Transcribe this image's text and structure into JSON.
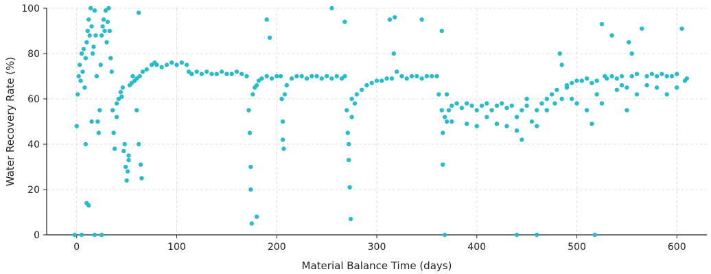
{
  "chart_data": {
    "type": "scatter",
    "xlabel": "Material Balance Time (days)",
    "ylabel": "Water Recovery Rate (%)",
    "xlim": [
      -30,
      630
    ],
    "ylim": [
      0,
      100
    ],
    "xticks": [
      0,
      100,
      200,
      300,
      400,
      500,
      600
    ],
    "yticks": [
      0,
      20,
      40,
      60,
      80,
      100
    ],
    "grid": true,
    "marker_color": "#26bcc9",
    "series": [
      {
        "points": [
          [
            0,
            48
          ],
          [
            1,
            62
          ],
          [
            2,
            70
          ],
          [
            3,
            75
          ],
          [
            4,
            68
          ],
          [
            5,
            80
          ],
          [
            6,
            72
          ],
          [
            7,
            82
          ],
          [
            8,
            65
          ],
          [
            9,
            78
          ],
          [
            10,
            85
          ],
          [
            11,
            90
          ],
          [
            12,
            95
          ],
          [
            13,
            88
          ],
          [
            14,
            100
          ],
          [
            15,
            92
          ],
          [
            16,
            80
          ],
          [
            17,
            83
          ],
          [
            18,
            99
          ],
          [
            19,
            88
          ],
          [
            20,
            70
          ],
          [
            21,
            50
          ],
          [
            22,
            45
          ],
          [
            23,
            55
          ],
          [
            24,
            75
          ],
          [
            25,
            88
          ],
          [
            26,
            92
          ],
          [
            27,
            95
          ],
          [
            28,
            90
          ],
          [
            29,
            99
          ],
          [
            30,
            85
          ],
          [
            31,
            94
          ],
          [
            32,
            100
          ],
          [
            33,
            90
          ],
          [
            34,
            78
          ],
          [
            35,
            72
          ],
          [
            36,
            55
          ],
          [
            37,
            45
          ],
          [
            38,
            38
          ],
          [
            40,
            52
          ],
          [
            42,
            60
          ],
          [
            44,
            63
          ],
          [
            46,
            65
          ],
          [
            48,
            40
          ],
          [
            49,
            30
          ],
          [
            50,
            24
          ],
          [
            51,
            28
          ],
          [
            52,
            35
          ],
          [
            53,
            66
          ],
          [
            55,
            67
          ],
          [
            58,
            68
          ],
          [
            60,
            69
          ],
          [
            62,
            98
          ],
          [
            63,
            70
          ],
          [
            64,
            31
          ],
          [
            65,
            25
          ],
          [
            66,
            72
          ],
          [
            70,
            73
          ],
          [
            75,
            75
          ],
          [
            78,
            76
          ],
          [
            80,
            75
          ],
          [
            85,
            74
          ],
          [
            90,
            75
          ],
          [
            95,
            76
          ],
          [
            100,
            75
          ],
          [
            105,
            76
          ],
          [
            110,
            75
          ],
          [
            112,
            72
          ],
          [
            115,
            71
          ],
          [
            120,
            72
          ],
          [
            125,
            71
          ],
          [
            130,
            72
          ],
          [
            135,
            71
          ],
          [
            140,
            71
          ],
          [
            145,
            72
          ],
          [
            150,
            71
          ],
          [
            155,
            71
          ],
          [
            160,
            72
          ],
          [
            165,
            71
          ],
          [
            170,
            70
          ],
          [
            172,
            55
          ],
          [
            173,
            45
          ],
          [
            174,
            20
          ],
          [
            175,
            5
          ],
          [
            176,
            62
          ],
          [
            178,
            65
          ],
          [
            180,
            66
          ],
          [
            182,
            68
          ],
          [
            185,
            69
          ],
          [
            190,
            70
          ],
          [
            195,
            69
          ],
          [
            200,
            70
          ],
          [
            204,
            70
          ],
          [
            205,
            60
          ],
          [
            206,
            50
          ],
          [
            207,
            38
          ],
          [
            208,
            62
          ],
          [
            210,
            66
          ],
          [
            215,
            69
          ],
          [
            220,
            70
          ],
          [
            225,
            70
          ],
          [
            230,
            69
          ],
          [
            235,
            70
          ],
          [
            240,
            70
          ],
          [
            245,
            69
          ],
          [
            250,
            70
          ],
          [
            255,
            69
          ],
          [
            260,
            70
          ],
          [
            265,
            69
          ],
          [
            268,
            70
          ],
          [
            270,
            55
          ],
          [
            271,
            45
          ],
          [
            272,
            33
          ],
          [
            273,
            21
          ],
          [
            274,
            7
          ],
          [
            275,
            52
          ],
          [
            278,
            58
          ],
          [
            280,
            62
          ],
          [
            285,
            64
          ],
          [
            290,
            66
          ],
          [
            295,
            67
          ],
          [
            300,
            68
          ],
          [
            305,
            68
          ],
          [
            310,
            69
          ],
          [
            315,
            69
          ],
          [
            317,
            80
          ],
          [
            318,
            96
          ],
          [
            320,
            72
          ],
          [
            325,
            70
          ],
          [
            330,
            69
          ],
          [
            335,
            70
          ],
          [
            340,
            70
          ],
          [
            345,
            69
          ],
          [
            350,
            70
          ],
          [
            355,
            70
          ],
          [
            360,
            70
          ],
          [
            362,
            62
          ],
          [
            365,
            55
          ],
          [
            366,
            31
          ],
          [
            368,
            52
          ],
          [
            370,
            50
          ],
          [
            372,
            55
          ],
          [
            375,
            57
          ],
          [
            380,
            58
          ],
          [
            385,
            56
          ],
          [
            390,
            58
          ],
          [
            395,
            57
          ],
          [
            400,
            55
          ],
          [
            405,
            57
          ],
          [
            410,
            58
          ],
          [
            415,
            55
          ],
          [
            420,
            57
          ],
          [
            425,
            58
          ],
          [
            430,
            56
          ],
          [
            435,
            57
          ],
          [
            440,
            52
          ],
          [
            445,
            55
          ],
          [
            450,
            57
          ],
          [
            455,
            50
          ],
          [
            460,
            55
          ],
          [
            465,
            58
          ],
          [
            470,
            60
          ],
          [
            475,
            62
          ],
          [
            480,
            64
          ],
          [
            483,
            80
          ],
          [
            485,
            60
          ],
          [
            490,
            65
          ],
          [
            495,
            67
          ],
          [
            500,
            68
          ],
          [
            505,
            68
          ],
          [
            510,
            69
          ],
          [
            515,
            67
          ],
          [
            520,
            68
          ],
          [
            525,
            93
          ],
          [
            528,
            70
          ],
          [
            530,
            69
          ],
          [
            535,
            70
          ],
          [
            540,
            69
          ],
          [
            545,
            70
          ],
          [
            550,
            65
          ],
          [
            552,
            85
          ],
          [
            555,
            70
          ],
          [
            560,
            71
          ],
          [
            565,
            91
          ],
          [
            570,
            70
          ],
          [
            575,
            71
          ],
          [
            580,
            70
          ],
          [
            585,
            71
          ],
          [
            590,
            70
          ],
          [
            595,
            70
          ],
          [
            600,
            71
          ],
          [
            605,
            91
          ],
          [
            610,
            69
          ],
          [
            10,
            14
          ],
          [
            12,
            13
          ],
          [
            -2,
            0
          ],
          [
            5,
            0
          ],
          [
            18,
            0
          ],
          [
            25,
            0
          ],
          [
            190,
            95
          ],
          [
            193,
            87
          ],
          [
            255,
            100
          ],
          [
            268,
            94
          ],
          [
            313,
            95
          ],
          [
            345,
            95
          ],
          [
            365,
            90
          ],
          [
            535,
            88
          ],
          [
            9,
            40
          ],
          [
            15,
            50
          ],
          [
            40,
            58
          ],
          [
            45,
            61
          ],
          [
            47,
            37
          ],
          [
            52,
            33
          ],
          [
            56,
            70
          ],
          [
            60,
            55
          ],
          [
            62,
            40
          ],
          [
            174,
            30
          ],
          [
            180,
            8
          ],
          [
            206,
            42
          ],
          [
            272,
            40
          ],
          [
            275,
            60
          ],
          [
            366,
            45
          ],
          [
            370,
            62
          ],
          [
            375,
            50
          ],
          [
            390,
            49
          ],
          [
            400,
            48
          ],
          [
            410,
            52
          ],
          [
            420,
            49
          ],
          [
            430,
            48
          ],
          [
            440,
            46
          ],
          [
            445,
            42
          ],
          [
            450,
            60
          ],
          [
            460,
            48
          ],
          [
            470,
            55
          ],
          [
            478,
            58
          ],
          [
            485,
            75
          ],
          [
            490,
            66
          ],
          [
            495,
            60
          ],
          [
            500,
            58
          ],
          [
            510,
            55
          ],
          [
            515,
            49
          ],
          [
            520,
            62
          ],
          [
            525,
            58
          ],
          [
            540,
            64
          ],
          [
            545,
            66
          ],
          [
            550,
            55
          ],
          [
            555,
            80
          ],
          [
            560,
            62
          ],
          [
            570,
            66
          ],
          [
            580,
            65
          ],
          [
            590,
            62
          ],
          [
            600,
            65
          ],
          [
            608,
            68
          ],
          [
            368,
            0
          ],
          [
            440,
            0
          ],
          [
            460,
            0
          ],
          [
            518,
            0
          ]
        ]
      }
    ]
  }
}
